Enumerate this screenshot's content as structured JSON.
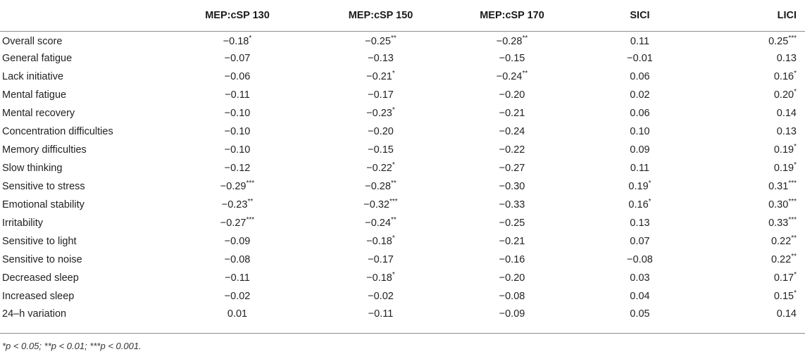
{
  "table": {
    "headers": [
      "",
      "MEP:cSP 130",
      "MEP:cSP 150",
      "MEP:cSP 170",
      "SICI",
      "LICI"
    ],
    "rows": [
      {
        "label": "Overall score",
        "cells": [
          "−0.18*",
          "−0.25**",
          "−0.28**",
          "0.11",
          "0.25***"
        ]
      },
      {
        "label": "General fatigue",
        "cells": [
          "−0.07",
          "−0.13",
          "−0.15",
          "−0.01",
          "0.13"
        ]
      },
      {
        "label": "Lack initiative",
        "cells": [
          "−0.06",
          "−0.21*",
          "−0.24**",
          "0.06",
          "0.16*"
        ]
      },
      {
        "label": "Mental fatigue",
        "cells": [
          "−0.11",
          "−0.17",
          "−0.20",
          "0.02",
          "0.20*"
        ]
      },
      {
        "label": "Mental recovery",
        "cells": [
          "−0.10",
          "−0.23*",
          "−0.21",
          "0.06",
          "0.14"
        ]
      },
      {
        "label": "Concentration difficulties",
        "cells": [
          "−0.10",
          "−0.20",
          "−0.24",
          "0.10",
          "0.13"
        ]
      },
      {
        "label": "Memory difficulties",
        "cells": [
          "−0.10",
          "−0.15",
          "−0.22",
          "0.09",
          "0.19*"
        ]
      },
      {
        "label": "Slow thinking",
        "cells": [
          "−0.12",
          "−0.22*",
          "−0.27",
          "0.11",
          "0.19*"
        ]
      },
      {
        "label": "Sensitive to stress",
        "cells": [
          "−0.29***",
          "−0.28**",
          "−0.30",
          "0.19*",
          "0.31***"
        ]
      },
      {
        "label": "Emotional stability",
        "cells": [
          "−0.23**",
          "−0.32***",
          "−0.33",
          "0.16*",
          "0.30***"
        ]
      },
      {
        "label": "Irritability",
        "cells": [
          "−0.27***",
          "−0.24**",
          "−0.25",
          "0.13",
          "0.33***"
        ]
      },
      {
        "label": "Sensitive to light",
        "cells": [
          "−0.09",
          "−0.18*",
          "−0.21",
          "0.07",
          "0.22**"
        ]
      },
      {
        "label": "Sensitive to noise",
        "cells": [
          "−0.08",
          "−0.17",
          "−0.16",
          "−0.08",
          "0.22**"
        ]
      },
      {
        "label": "Decreased sleep",
        "cells": [
          "−0.11",
          "−0.18*",
          "−0.20",
          "0.03",
          "0.17*"
        ]
      },
      {
        "label": "Increased sleep",
        "cells": [
          "−0.02",
          "−0.02",
          "−0.08",
          "0.04",
          "0.15*"
        ]
      },
      {
        "label": "24–h variation",
        "cells": [
          "0.01",
          "−0.11",
          "−0.09",
          "0.05",
          "0.14"
        ]
      }
    ],
    "footnote": "*p < 0.05; **p < 0.01; ***p < 0.001."
  }
}
